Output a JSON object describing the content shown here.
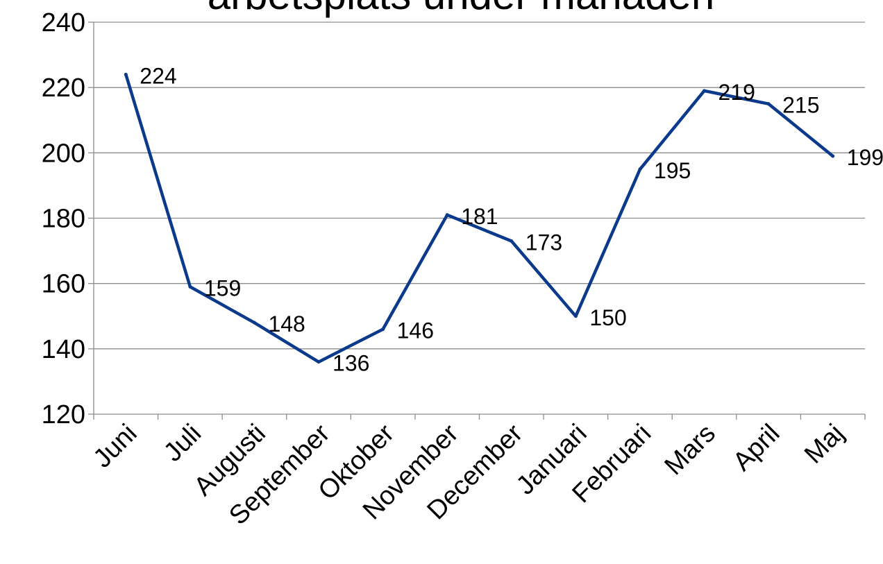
{
  "chart_data": {
    "type": "line",
    "title": "arbetsplats under månaden",
    "xlabel": "",
    "ylabel": "",
    "categories": [
      "Juni",
      "Juli",
      "Augusti",
      "September",
      "Oktober",
      "November",
      "December",
      "Januari",
      "Februari",
      "Mars",
      "April",
      "Maj"
    ],
    "series": [
      {
        "values": [
          224,
          159,
          148,
          136,
          146,
          181,
          173,
          150,
          195,
          219,
          215,
          199
        ],
        "color": "#0b3a8c"
      }
    ],
    "ylim": [
      120,
      240
    ],
    "yticks": [
      120,
      140,
      160,
      180,
      200,
      220,
      240
    ],
    "grid": true,
    "legend": "none",
    "data_labels": true
  }
}
